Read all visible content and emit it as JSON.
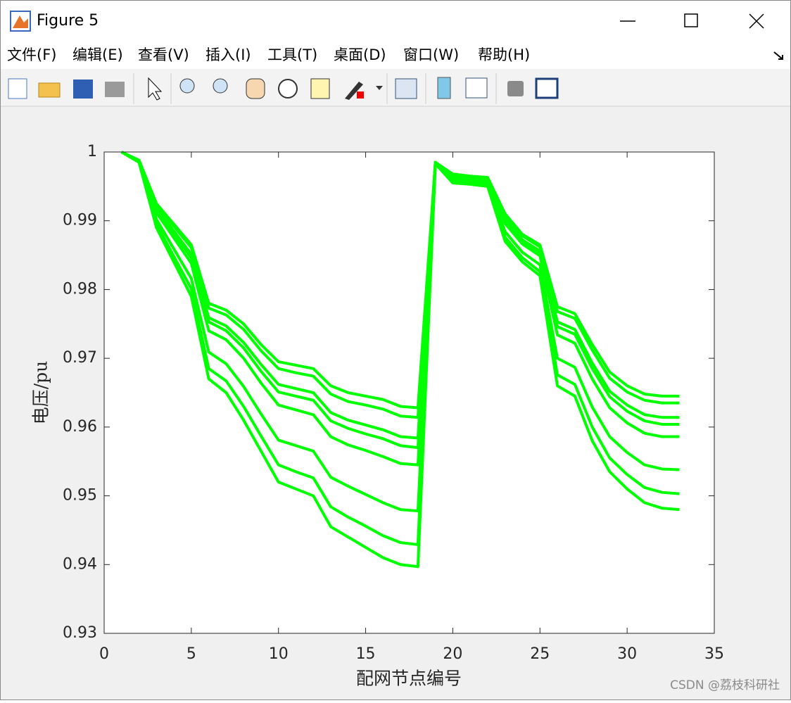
{
  "window": {
    "title": "Figure 5",
    "menus": [
      "文件(F)",
      "编辑(E)",
      "查看(V)",
      "插入(I)",
      "工具(T)",
      "桌面(D)",
      "窗口(W)",
      "帮助(H)"
    ],
    "watermark": "CSDN @荔枝科研社"
  },
  "chart_data": {
    "type": "line",
    "xlabel": "配网节点编号",
    "ylabel": "电压/pu",
    "x": [
      1,
      2,
      3,
      4,
      5,
      6,
      7,
      8,
      9,
      10,
      11,
      12,
      13,
      14,
      15,
      16,
      17,
      18,
      19,
      20,
      21,
      22,
      23,
      24,
      25,
      26,
      27,
      28,
      29,
      30,
      31,
      32,
      33
    ],
    "series": [
      {
        "color": "#00ff00",
        "values": [
          1.0,
          0.9988,
          0.9925,
          0.9895,
          0.9865,
          0.978,
          0.977,
          0.975,
          0.972,
          0.9695,
          0.969,
          0.9685,
          0.966,
          0.965,
          0.9645,
          0.964,
          0.963,
          0.9628,
          0.9985,
          0.9968,
          0.9965,
          0.9963,
          0.991,
          0.988,
          0.9865,
          0.9775,
          0.9765,
          0.972,
          0.968,
          0.966,
          0.9648,
          0.9645,
          0.9645
        ]
      },
      {
        "color": "#00ff00",
        "values": [
          1.0,
          0.9988,
          0.9923,
          0.9892,
          0.9861,
          0.9773,
          0.9763,
          0.9742,
          0.9711,
          0.9685,
          0.9679,
          0.9674,
          0.9648,
          0.9637,
          0.9632,
          0.9626,
          0.9616,
          0.9614,
          0.9985,
          0.9967,
          0.9964,
          0.9962,
          0.9908,
          0.9878,
          0.9862,
          0.9768,
          0.9758,
          0.9712,
          0.9671,
          0.9651,
          0.9639,
          0.9635,
          0.9635
        ]
      },
      {
        "color": "#00ff00",
        "values": [
          1.0,
          0.9987,
          0.9918,
          0.9885,
          0.9851,
          0.9759,
          0.9747,
          0.9723,
          0.9691,
          0.9662,
          0.9656,
          0.965,
          0.9621,
          0.961,
          0.9603,
          0.9596,
          0.9586,
          0.9584,
          0.9985,
          0.9966,
          0.9963,
          0.9961,
          0.9902,
          0.9872,
          0.9856,
          0.9753,
          0.9742,
          0.9693,
          0.9652,
          0.9632,
          0.9618,
          0.9614,
          0.9614
        ]
      },
      {
        "color": "#00ff00",
        "values": [
          1.0,
          0.9987,
          0.9916,
          0.9881,
          0.9846,
          0.9753,
          0.974,
          0.9715,
          0.9681,
          0.9651,
          0.9645,
          0.9639,
          0.9609,
          0.9598,
          0.959,
          0.9583,
          0.9573,
          0.957,
          0.9985,
          0.9965,
          0.9962,
          0.996,
          0.99,
          0.987,
          0.9854,
          0.9746,
          0.9735,
          0.9685,
          0.9644,
          0.9623,
          0.9609,
          0.9604,
          0.9604
        ]
      },
      {
        "color": "#00ff00",
        "values": [
          1.0,
          0.9987,
          0.9912,
          0.9875,
          0.9838,
          0.974,
          0.9727,
          0.97,
          0.9664,
          0.9632,
          0.9625,
          0.9618,
          0.9586,
          0.9574,
          0.9566,
          0.9557,
          0.9547,
          0.9545,
          0.9984,
          0.9963,
          0.9961,
          0.9958,
          0.9896,
          0.9866,
          0.9849,
          0.9734,
          0.9722,
          0.967,
          0.9628,
          0.9606,
          0.9591,
          0.9586,
          0.9586
        ]
      },
      {
        "color": "#00ff00",
        "values": [
          1.0,
          0.9986,
          0.9902,
          0.9859,
          0.9816,
          0.9709,
          0.9692,
          0.9659,
          0.9619,
          0.9581,
          0.9573,
          0.9565,
          0.9527,
          0.9514,
          0.9502,
          0.949,
          0.948,
          0.9478,
          0.9984,
          0.996,
          0.9957,
          0.9955,
          0.9884,
          0.9854,
          0.9836,
          0.97,
          0.9687,
          0.9629,
          0.9586,
          0.9563,
          0.9545,
          0.9539,
          0.9538
        ]
      },
      {
        "color": "#00ff00",
        "values": [
          1.0,
          0.9985,
          0.9895,
          0.9848,
          0.9801,
          0.9685,
          0.9667,
          0.963,
          0.9587,
          0.9545,
          0.9535,
          0.9526,
          0.9484,
          0.9469,
          0.9456,
          0.9442,
          0.9432,
          0.9429,
          0.9983,
          0.9957,
          0.9955,
          0.9952,
          0.9876,
          0.9846,
          0.9826,
          0.9676,
          0.9662,
          0.96,
          0.9555,
          0.9531,
          0.9512,
          0.9505,
          0.9503
        ]
      },
      {
        "color": "#00ff00",
        "values": [
          1.0,
          0.9985,
          0.989,
          0.984,
          0.979,
          0.967,
          0.965,
          0.961,
          0.9565,
          0.952,
          0.951,
          0.95,
          0.9455,
          0.944,
          0.9425,
          0.941,
          0.94,
          0.9397,
          0.9983,
          0.9955,
          0.9953,
          0.995,
          0.987,
          0.984,
          0.982,
          0.966,
          0.9645,
          0.958,
          0.9535,
          0.951,
          0.949,
          0.9482,
          0.948
        ]
      }
    ],
    "xlim": [
      0,
      35
    ],
    "xticks": [
      0,
      5,
      10,
      15,
      20,
      25,
      30,
      35
    ],
    "ylim": [
      0.93,
      1
    ],
    "yticks": [
      0.93,
      0.94,
      0.95,
      0.96,
      0.97,
      0.98,
      0.99,
      1
    ]
  }
}
